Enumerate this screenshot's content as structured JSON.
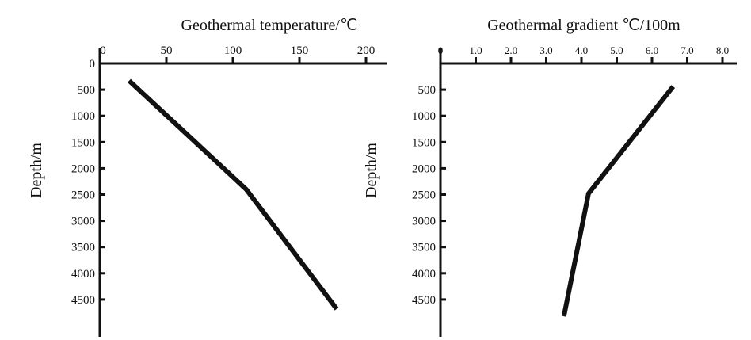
{
  "chart_data": [
    {
      "type": "line",
      "xlabel": "Geothermal temperature/℃",
      "ylabel": "Depth/m",
      "x_ticks": [
        "0",
        "50",
        "100",
        "150",
        "200"
      ],
      "x_tick_values": [
        0,
        50,
        100,
        150,
        200
      ],
      "xlim": [
        0,
        200
      ],
      "y_ticks": [
        "0",
        "500",
        "1000",
        "1500",
        "2000",
        "2500",
        "3000",
        "3500",
        "4000",
        "4500"
      ],
      "y_tick_values": [
        0,
        500,
        1000,
        1500,
        2000,
        2500,
        3000,
        3500,
        4000,
        4500
      ],
      "ylim": [
        0,
        5000
      ],
      "y_inverted": true,
      "x_axis_position": "top",
      "grid": false,
      "series": [
        {
          "points": [
            [
              22,
              330
            ],
            [
              110,
              2400
            ],
            [
              178,
              4680
            ]
          ]
        }
      ]
    },
    {
      "type": "line",
      "xlabel": "Geothermal gradient ℃/100m",
      "ylabel": "Depth/m",
      "x_ticks": [
        "0",
        "1.0",
        "2.0",
        "3.0",
        "4.0",
        "5.0",
        "6.0",
        "7.0",
        "8.0"
      ],
      "x_tick_values": [
        0,
        1,
        2,
        3,
        4,
        5,
        6,
        7,
        8
      ],
      "xlim": [
        0,
        8
      ],
      "y_ticks": [
        "500",
        "1000",
        "1500",
        "2000",
        "2500",
        "3000",
        "3500",
        "4000",
        "4500"
      ],
      "y_tick_values": [
        500,
        1000,
        1500,
        2000,
        2500,
        3000,
        3500,
        4000,
        4500
      ],
      "ylim": [
        0,
        5000
      ],
      "y_inverted": true,
      "x_axis_position": "top",
      "grid": false,
      "series": [
        {
          "points": [
            [
              6.6,
              440
            ],
            [
              4.2,
              2480
            ],
            [
              3.5,
              4820
            ]
          ]
        }
      ]
    }
  ]
}
